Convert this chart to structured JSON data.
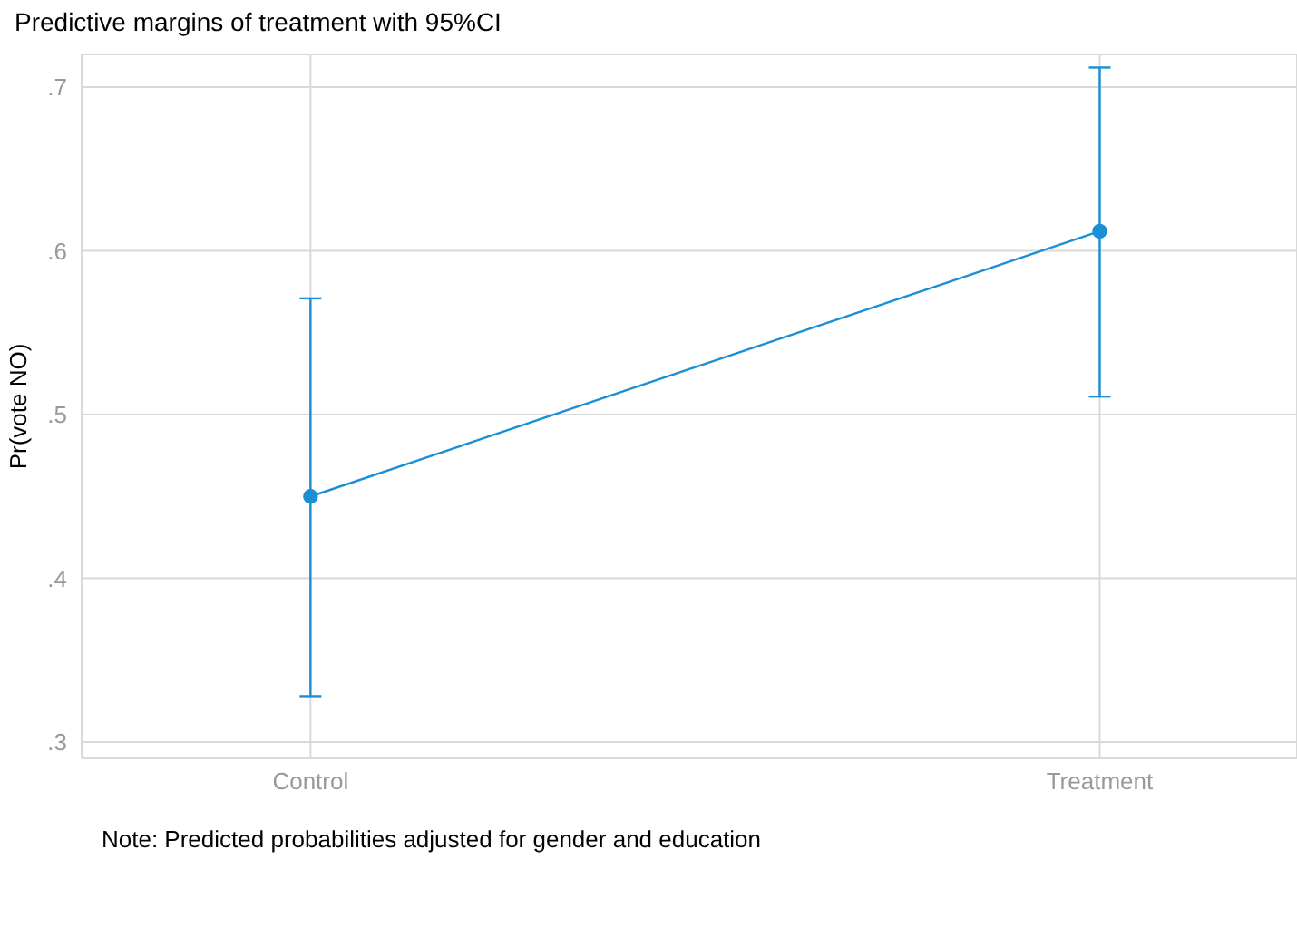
{
  "chart_data": {
    "type": "line",
    "title": "Predictive margins of treatment with 95%CI",
    "ylabel": "Pr(vote NO)",
    "categories": [
      "Control",
      "Treatment"
    ],
    "series": [
      {
        "color": "#1a8fd6",
        "values": [
          0.45,
          0.612
        ],
        "errors": [
          [
            0.328,
            0.571
          ],
          [
            0.511,
            0.712
          ]
        ]
      }
    ],
    "ylim": [
      0.29,
      0.72
    ],
    "yticks": [
      {
        "value": 0.3,
        "label": ".3"
      },
      {
        "value": 0.4,
        "label": ".4"
      },
      {
        "value": 0.5,
        "label": ".5"
      },
      {
        "value": 0.6,
        "label": ".6"
      },
      {
        "value": 0.7,
        "label": ".7"
      }
    ],
    "grid": true,
    "marker": "circle",
    "line_style": "solid",
    "annotations": [
      "Note: Predicted probabilities adjusted for gender and education"
    ]
  }
}
